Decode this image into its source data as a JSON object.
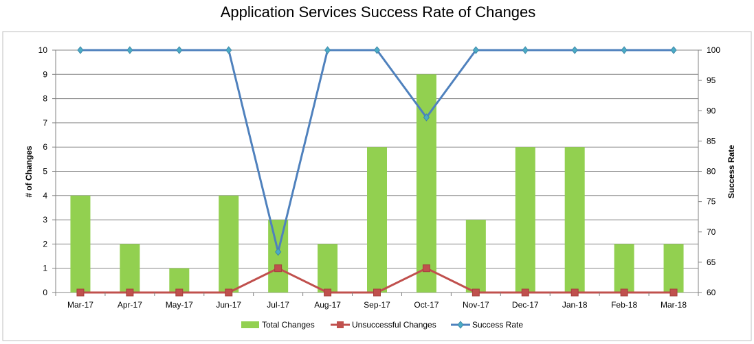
{
  "chart_data": {
    "type": "bar",
    "title": "Application Services Success Rate of Changes",
    "categories": [
      "Mar-17",
      "Apr-17",
      "May-17",
      "Jun-17",
      "Jul-17",
      "Aug-17",
      "Sep-17",
      "Oct-17",
      "Nov-17",
      "Dec-17",
      "Jan-18",
      "Feb-18",
      "Mar-18"
    ],
    "ylabel": "# of Changes",
    "y2label": "Success Rate",
    "ylim": [
      0,
      10
    ],
    "y2lim": [
      60,
      100
    ],
    "yticks": [
      "0",
      "1",
      "2",
      "3",
      "4",
      "5",
      "6",
      "7",
      "8",
      "9",
      "10"
    ],
    "y2ticks": [
      "60",
      "65",
      "70",
      "75",
      "80",
      "85",
      "90",
      "95",
      "100"
    ],
    "grid": true,
    "legend_position": "bottom",
    "series": [
      {
        "name": "Total Changes",
        "type": "bar",
        "axis": "left",
        "color": "#92d050",
        "values": [
          4,
          2,
          1,
          4,
          3,
          2,
          6,
          9,
          3,
          6,
          6,
          2,
          2
        ]
      },
      {
        "name": "Unsuccessful Changes",
        "type": "line",
        "axis": "left",
        "color": "#c0504d",
        "marker": "square",
        "values": [
          0,
          0,
          0,
          0,
          1,
          0,
          0,
          1,
          0,
          0,
          0,
          0,
          0
        ]
      },
      {
        "name": "Success Rate",
        "type": "line",
        "axis": "right",
        "color": "#4f81bd",
        "marker": "diamond",
        "values": [
          100,
          100,
          100,
          100,
          66.7,
          100,
          100,
          88.9,
          100,
          100,
          100,
          100,
          100
        ]
      }
    ]
  }
}
